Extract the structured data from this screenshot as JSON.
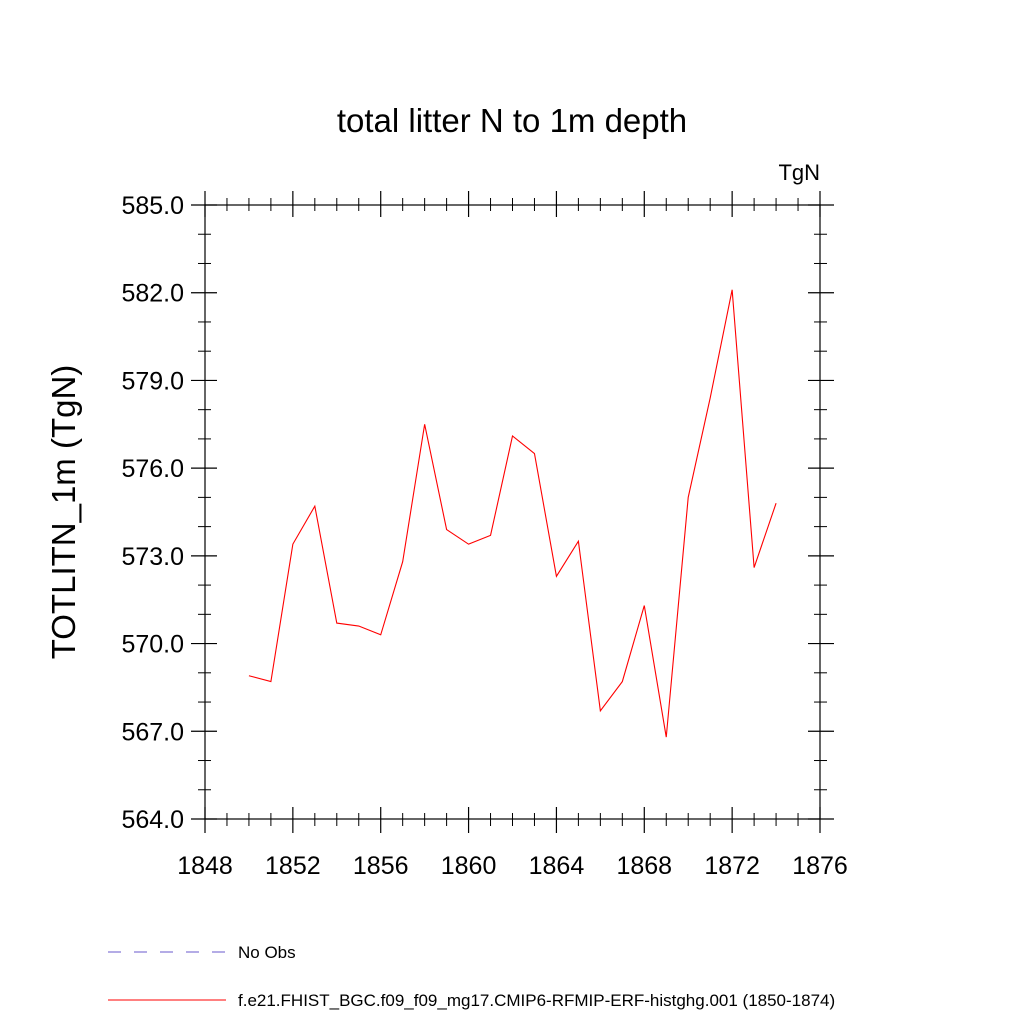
{
  "chart_data": {
    "type": "line",
    "title": "total litter N to 1m depth",
    "units": "TgN",
    "ylabel": "TOTLITN_1m  (TgN)",
    "xlabel": "",
    "xlim": [
      1848,
      1876
    ],
    "ylim": [
      564.0,
      585.0
    ],
    "xticks": [
      1848,
      1852,
      1856,
      1860,
      1864,
      1868,
      1872,
      1876
    ],
    "xtick_labels": [
      "1848",
      "1852",
      "1856",
      "1860",
      "1864",
      "1868",
      "1872",
      "1876"
    ],
    "yticks": [
      564.0,
      567.0,
      570.0,
      573.0,
      576.0,
      579.0,
      582.0,
      585.0
    ],
    "ytick_labels": [
      "564.0",
      "567.0",
      "570.0",
      "573.0",
      "576.0",
      "579.0",
      "582.0",
      "585.0"
    ],
    "series": [
      {
        "name": "No Obs",
        "color": "#6a5acd",
        "dash": "dashed",
        "x": [],
        "values": []
      },
      {
        "name": "f.e21.FHIST_BGC.f09_f09_mg17.CMIP6-RFMIP-ERF-histghg.001 (1850-1874)",
        "color": "#ff0000",
        "dash": "solid",
        "x": [
          1850,
          1851,
          1852,
          1853,
          1854,
          1855,
          1856,
          1857,
          1858,
          1859,
          1860,
          1861,
          1862,
          1863,
          1864,
          1865,
          1866,
          1867,
          1868,
          1869,
          1870,
          1871,
          1872,
          1873,
          1874
        ],
        "values": [
          568.9,
          568.7,
          573.4,
          574.7,
          570.7,
          570.6,
          570.3,
          572.8,
          577.5,
          573.9,
          573.4,
          573.7,
          577.1,
          576.5,
          572.3,
          573.5,
          567.7,
          568.7,
          571.3,
          566.8,
          575.0,
          578.4,
          582.1,
          572.6,
          574.8
        ]
      }
    ],
    "legend_position": "bottom-left"
  }
}
